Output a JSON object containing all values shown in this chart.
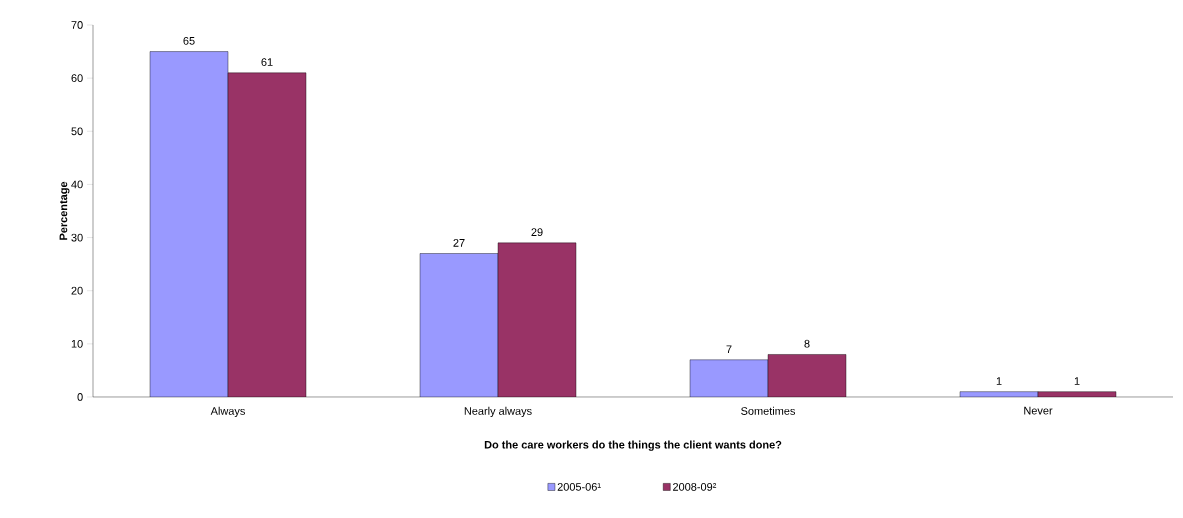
{
  "chart_data": {
    "type": "bar",
    "xlabel": "Do the care workers do the things the client wants done?",
    "ylabel": "Percentage",
    "categories": [
      "Always",
      "Nearly always",
      "Sometimes",
      "Never"
    ],
    "series": [
      {
        "name": "2005-06¹",
        "color": "#9999ff",
        "values": [
          65,
          27,
          7,
          1
        ]
      },
      {
        "name": "2008-09²",
        "color": "#993366",
        "values": [
          61,
          29,
          8,
          1
        ]
      }
    ],
    "ylim": [
      0,
      70
    ],
    "yticks": [
      0,
      10,
      20,
      30,
      40,
      50,
      60,
      70
    ],
    "data_labels": true,
    "legend": "bottom"
  }
}
